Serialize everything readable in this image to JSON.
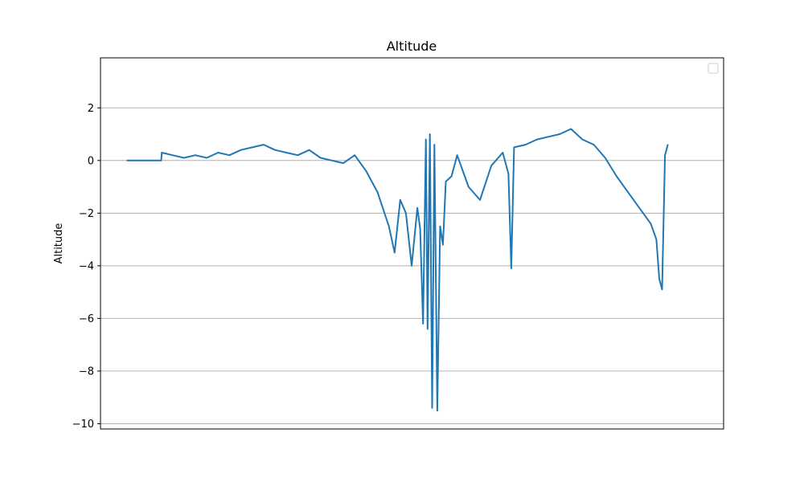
{
  "chart_data": {
    "type": "line",
    "title": "Altitude",
    "xlabel": "",
    "ylabel": "Altitude",
    "ylim": [
      -10.2,
      3.9
    ],
    "yticks": [
      2,
      0,
      -2,
      -4,
      -6,
      -8,
      -10
    ],
    "ytick_labels": [
      "2",
      "0",
      "−2",
      "−4",
      "−6",
      "−8",
      "−10"
    ],
    "xlim": [
      0,
      1000
    ],
    "grid": "horizontal",
    "legend": "top-right (empty)",
    "series": [
      {
        "color": "#1f77b4",
        "x": [
          0,
          60,
          61,
          80,
          100,
          120,
          140,
          160,
          180,
          200,
          220,
          240,
          260,
          280,
          300,
          320,
          340,
          360,
          380,
          400,
          420,
          440,
          460,
          470,
          480,
          490,
          500,
          510,
          515,
          520,
          525,
          528,
          532,
          536,
          540,
          545,
          550,
          555,
          560,
          570,
          580,
          590,
          600,
          620,
          640,
          660,
          670,
          675,
          680,
          700,
          720,
          740,
          760,
          780,
          800,
          820,
          840,
          860,
          880,
          900,
          920,
          930,
          935,
          940,
          945,
          950
        ],
        "y": [
          0.0,
          0.0,
          0.3,
          0.2,
          0.1,
          0.2,
          0.1,
          0.3,
          0.2,
          0.4,
          0.5,
          0.6,
          0.4,
          0.3,
          0.2,
          0.4,
          0.1,
          0.0,
          -0.1,
          0.2,
          -0.4,
          -1.2,
          -2.5,
          -3.5,
          -1.5,
          -2.0,
          -4.0,
          -1.8,
          -2.6,
          -6.2,
          0.8,
          -6.4,
          1.0,
          -9.4,
          0.6,
          -9.5,
          -2.5,
          -3.2,
          -0.8,
          -0.6,
          0.2,
          -0.4,
          -1.0,
          -1.5,
          -0.2,
          0.3,
          -0.5,
          -4.1,
          0.5,
          0.6,
          0.8,
          0.9,
          1.0,
          1.2,
          0.8,
          0.6,
          0.1,
          -0.6,
          -1.2,
          -1.8,
          -2.4,
          -3.0,
          -4.5,
          -4.9,
          0.2,
          0.6
        ]
      }
    ]
  }
}
